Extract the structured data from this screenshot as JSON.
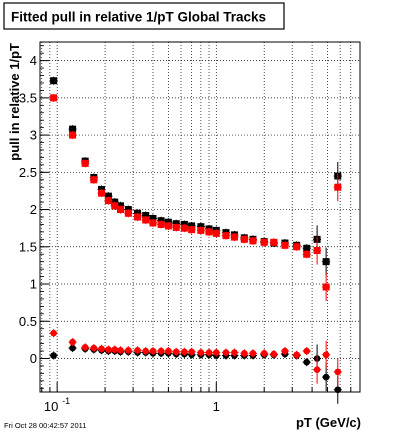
{
  "chart_data": {
    "type": "scatter",
    "title": "Fitted pull in relative 1/pT  Global Tracks",
    "xlabel": "pT (GeV/c)",
    "ylabel": "pull in relative 1/pT",
    "xscale": "log",
    "xlim": [
      0.078,
      8.0
    ],
    "ylim": [
      -0.45,
      4.25
    ],
    "x_ticks": [
      {
        "value": 0.1,
        "base": "10",
        "exp": "-1"
      },
      {
        "value": 1,
        "label": "1"
      }
    ],
    "y_ticks": [
      0,
      0.5,
      1,
      1.5,
      2,
      2.5,
      3,
      3.5,
      4
    ],
    "y_tick_labels": [
      "0",
      "0.5",
      "1",
      "1.5",
      "2",
      "2.5",
      "3",
      "3.5",
      "4"
    ],
    "grid": true,
    "timestamp": "Fri Oct 28 00:42:57 2011",
    "series": [
      {
        "color": "#000000",
        "points": [
          [
            0.095,
            3.73
          ],
          [
            0.125,
            3.08
          ],
          [
            0.15,
            2.65
          ],
          [
            0.17,
            2.43
          ],
          [
            0.19,
            2.27
          ],
          [
            0.21,
            2.18
          ],
          [
            0.23,
            2.1
          ],
          [
            0.25,
            2.05
          ],
          [
            0.28,
            2.0
          ],
          [
            0.32,
            1.95
          ],
          [
            0.36,
            1.92
          ],
          [
            0.4,
            1.88
          ],
          [
            0.45,
            1.85
          ],
          [
            0.5,
            1.83
          ],
          [
            0.56,
            1.81
          ],
          [
            0.63,
            1.8
          ],
          [
            0.7,
            1.78
          ],
          [
            0.8,
            1.77
          ],
          [
            0.9,
            1.74
          ],
          [
            1.0,
            1.72
          ],
          [
            1.15,
            1.69
          ],
          [
            1.3,
            1.66
          ],
          [
            1.5,
            1.62
          ],
          [
            1.7,
            1.6
          ],
          [
            2.0,
            1.57
          ],
          [
            2.3,
            1.55
          ],
          [
            2.7,
            1.55
          ],
          [
            3.2,
            1.52
          ],
          [
            3.7,
            1.48
          ],
          [
            4.3,
            1.6
          ],
          [
            4.9,
            1.3
          ],
          [
            5.8,
            2.45
          ]
        ]
      },
      {
        "color": "#ff0000",
        "points": [
          [
            0.095,
            3.5
          ],
          [
            0.125,
            3.0
          ],
          [
            0.15,
            2.62
          ],
          [
            0.17,
            2.4
          ],
          [
            0.19,
            2.22
          ],
          [
            0.21,
            2.12
          ],
          [
            0.23,
            2.05
          ],
          [
            0.25,
            2.0
          ],
          [
            0.28,
            1.95
          ],
          [
            0.32,
            1.9
          ],
          [
            0.36,
            1.86
          ],
          [
            0.4,
            1.82
          ],
          [
            0.45,
            1.8
          ],
          [
            0.5,
            1.78
          ],
          [
            0.56,
            1.76
          ],
          [
            0.63,
            1.75
          ],
          [
            0.7,
            1.73
          ],
          [
            0.8,
            1.72
          ],
          [
            0.9,
            1.7
          ],
          [
            1.0,
            1.68
          ],
          [
            1.15,
            1.65
          ],
          [
            1.3,
            1.63
          ],
          [
            1.5,
            1.6
          ],
          [
            1.7,
            1.58
          ],
          [
            2.0,
            1.56
          ],
          [
            2.3,
            1.56
          ],
          [
            2.7,
            1.52
          ],
          [
            3.2,
            1.5
          ],
          [
            3.7,
            1.4
          ],
          [
            4.3,
            1.45
          ],
          [
            4.9,
            0.96
          ],
          [
            5.8,
            2.3
          ]
        ]
      },
      {
        "color": "#000000",
        "points": [
          [
            0.095,
            0.04
          ],
          [
            0.125,
            0.14
          ],
          [
            0.15,
            0.13
          ],
          [
            0.17,
            0.12
          ],
          [
            0.19,
            0.11
          ],
          [
            0.21,
            0.1
          ],
          [
            0.23,
            0.1
          ],
          [
            0.25,
            0.09
          ],
          [
            0.28,
            0.09
          ],
          [
            0.32,
            0.08
          ],
          [
            0.36,
            0.08
          ],
          [
            0.4,
            0.07
          ],
          [
            0.45,
            0.07
          ],
          [
            0.5,
            0.07
          ],
          [
            0.56,
            0.06
          ],
          [
            0.63,
            0.06
          ],
          [
            0.7,
            0.05
          ],
          [
            0.8,
            0.05
          ],
          [
            0.9,
            0.05
          ],
          [
            1.0,
            0.04
          ],
          [
            1.15,
            0.04
          ],
          [
            1.3,
            0.04
          ],
          [
            1.5,
            0.04
          ],
          [
            1.7,
            0.04
          ],
          [
            2.0,
            0.05
          ],
          [
            2.3,
            0.05
          ],
          [
            2.7,
            0.06
          ],
          [
            3.2,
            0.04
          ],
          [
            3.7,
            -0.05
          ],
          [
            4.3,
            0.0
          ],
          [
            4.9,
            -0.25
          ],
          [
            5.8,
            -0.42
          ]
        ]
      },
      {
        "color": "#ff0000",
        "points": [
          [
            0.095,
            0.34
          ],
          [
            0.125,
            0.22
          ],
          [
            0.15,
            0.15
          ],
          [
            0.17,
            0.14
          ],
          [
            0.19,
            0.13
          ],
          [
            0.21,
            0.12
          ],
          [
            0.23,
            0.12
          ],
          [
            0.25,
            0.11
          ],
          [
            0.28,
            0.11
          ],
          [
            0.32,
            0.11
          ],
          [
            0.36,
            0.1
          ],
          [
            0.4,
            0.1
          ],
          [
            0.45,
            0.1
          ],
          [
            0.5,
            0.1
          ],
          [
            0.56,
            0.09
          ],
          [
            0.63,
            0.09
          ],
          [
            0.7,
            0.09
          ],
          [
            0.8,
            0.08
          ],
          [
            0.9,
            0.08
          ],
          [
            1.0,
            0.08
          ],
          [
            1.15,
            0.08
          ],
          [
            1.3,
            0.08
          ],
          [
            1.5,
            0.07
          ],
          [
            1.7,
            0.07
          ],
          [
            2.0,
            0.07
          ],
          [
            2.3,
            0.06
          ],
          [
            2.7,
            0.1
          ],
          [
            3.2,
            0.05
          ],
          [
            3.7,
            0.1
          ],
          [
            4.3,
            -0.15
          ],
          [
            4.9,
            0.05
          ],
          [
            5.8,
            -0.18
          ]
        ]
      }
    ]
  }
}
